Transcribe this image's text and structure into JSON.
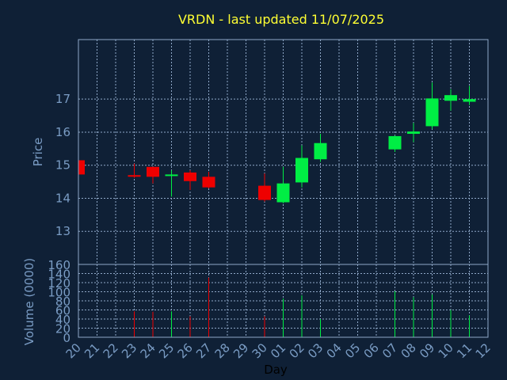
{
  "chart_data": {
    "type": "candlestick",
    "title": "VRDN - last updated 11/07/2025",
    "xlabel": "Day",
    "price_panel": {
      "ylabel": "Price",
      "yticks": [
        13,
        14,
        15,
        16,
        17
      ],
      "ylim": [
        12,
        18.8
      ]
    },
    "volume_panel": {
      "ylabel": "Volume (0000)",
      "yticks": [
        0,
        20,
        40,
        60,
        80,
        100,
        120,
        140,
        160
      ],
      "ylim": [
        0,
        160
      ]
    },
    "x_labels": [
      "20",
      "21",
      "22",
      "23",
      "24",
      "25",
      "26",
      "27",
      "28",
      "29",
      "30",
      "01",
      "02",
      "03",
      "04",
      "05",
      "06",
      "07",
      "08",
      "09",
      "10",
      "11",
      "12"
    ],
    "candles": [
      {
        "day": "20",
        "open": 15.15,
        "close": 14.72,
        "high": 15.15,
        "low": 14.72,
        "volume": 0
      },
      {
        "day": "23",
        "open": 14.7,
        "close": 14.68,
        "high": 15.05,
        "low": 14.62,
        "volume": 57
      },
      {
        "day": "24",
        "open": 14.95,
        "close": 14.65,
        "high": 14.95,
        "low": 14.45,
        "volume": 56
      },
      {
        "day": "25",
        "open": 14.68,
        "close": 14.72,
        "high": 14.85,
        "low": 14.05,
        "volume": 57
      },
      {
        "day": "26",
        "open": 14.78,
        "close": 14.52,
        "high": 14.85,
        "low": 14.25,
        "volume": 46
      },
      {
        "day": "27",
        "open": 14.65,
        "close": 14.33,
        "high": 14.8,
        "low": 14.3,
        "volume": 131
      },
      {
        "day": "30",
        "open": 14.38,
        "close": 13.95,
        "high": 14.75,
        "low": 13.9,
        "volume": 46
      },
      {
        "day": "01",
        "open": 13.88,
        "close": 14.45,
        "high": 14.95,
        "low": 13.85,
        "volume": 85
      },
      {
        "day": "02",
        "open": 14.48,
        "close": 15.22,
        "high": 15.6,
        "low": 14.33,
        "volume": 92
      },
      {
        "day": "03",
        "open": 15.18,
        "close": 15.67,
        "high": 15.95,
        "low": 15.1,
        "volume": 40
      },
      {
        "day": "07",
        "open": 15.48,
        "close": 15.88,
        "high": 15.9,
        "low": 15.4,
        "volume": 101
      },
      {
        "day": "08",
        "open": 15.95,
        "close": 16.02,
        "high": 16.28,
        "low": 15.7,
        "volume": 88
      },
      {
        "day": "09",
        "open": 16.18,
        "close": 17.02,
        "high": 17.5,
        "low": 16.1,
        "volume": 94
      },
      {
        "day": "10",
        "open": 16.95,
        "close": 17.12,
        "high": 17.3,
        "low": 16.65,
        "volume": 60
      },
      {
        "day": "11",
        "open": 16.92,
        "close": 17.0,
        "high": 17.4,
        "low": 16.82,
        "volume": 48
      }
    ],
    "colors": {
      "background": "#0f2036",
      "plot_border": "#8fa8c8",
      "grid": "#8fa8c8",
      "up": "#00ee44",
      "down": "#ee0000",
      "title": "#ffff33",
      "ticks": "#7a9cc4",
      "xlabel": "#000000"
    },
    "grid": true
  }
}
